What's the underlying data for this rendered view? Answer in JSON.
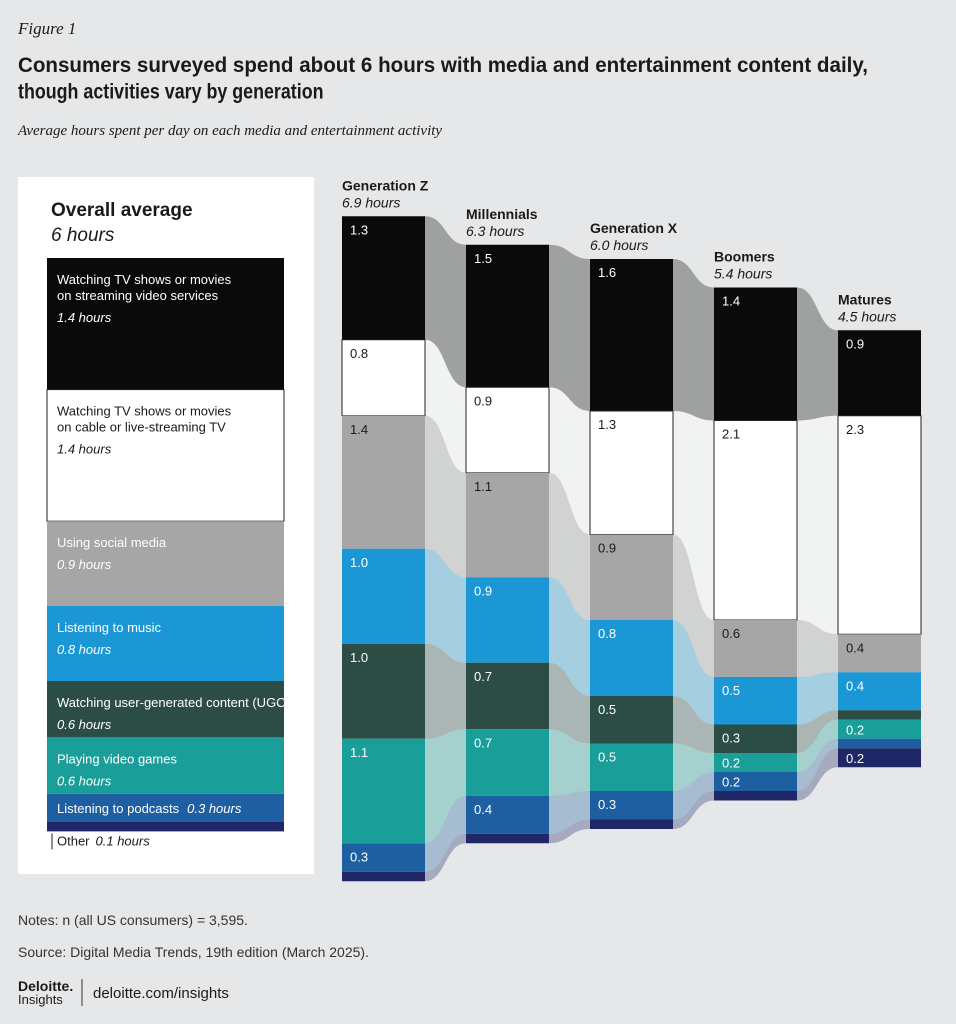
{
  "figure_label": "Figure 1",
  "chart_data": {
    "type": "stacked-flow-bar",
    "title": "Consumers surveyed spend about 6 hours with media and entertainment content daily,\nthough activities vary by generation",
    "subtitle": "Average hours spent per day on each media and entertainment activity",
    "overall": {
      "title": "Overall average",
      "value": 6,
      "value_label": "6 hours",
      "values": [
        1.4,
        1.4,
        0.9,
        0.8,
        0.6,
        0.6,
        0.3,
        0.1
      ],
      "value_labels": [
        "1.4 hours",
        "1.4 hours",
        "0.9 hours",
        "0.8 hours",
        "0.6 hours",
        "0.6 hours",
        "0.3 hours",
        "0.1 hours"
      ]
    },
    "categories": [
      "Generation Z",
      "Millennials",
      "Generation X",
      "Boomers",
      "Matures"
    ],
    "totals": [
      6.9,
      6.3,
      6.0,
      5.4,
      4.5
    ],
    "total_labels": [
      "6.9 hours",
      "6.3 hours",
      "6.0 hours",
      "5.4 hours",
      "4.5 hours"
    ],
    "series": [
      {
        "name": "Watching TV shows or movies\non streaming video services",
        "color": "#0a0a0a",
        "values": [
          1.3,
          1.5,
          1.6,
          1.4,
          0.9
        ],
        "value_labels": [
          "1.3",
          "1.5",
          "1.6",
          "1.4",
          "0.9"
        ]
      },
      {
        "name": "Watching TV shows or movies\non cable or live-streaming TV",
        "color": "#ffffff",
        "values": [
          0.8,
          0.9,
          1.3,
          2.1,
          2.3
        ],
        "value_labels": [
          "0.8",
          "0.9",
          "1.3",
          "2.1",
          "2.3"
        ]
      },
      {
        "name": "Using social media",
        "color": "#a6a6a6",
        "values": [
          1.4,
          1.1,
          0.9,
          0.6,
          0.4
        ],
        "value_labels": [
          "1.4",
          "1.1",
          "0.9",
          "0.6",
          "0.4"
        ]
      },
      {
        "name": "Listening to music",
        "color": "#1b97d5",
        "values": [
          1.0,
          0.9,
          0.8,
          0.5,
          0.4
        ],
        "value_labels": [
          "1.0",
          "0.9",
          "0.8",
          "0.5",
          "0.4"
        ]
      },
      {
        "name": "Watching user-generated content (UGC)",
        "color": "#2b4d45",
        "values": [
          1.0,
          0.7,
          0.5,
          0.3,
          0.1
        ],
        "value_labels": [
          "1.0",
          "0.7",
          "0.5",
          "0.3",
          null
        ]
      },
      {
        "name": "Playing video games",
        "color": "#1a9e99",
        "values": [
          1.1,
          0.7,
          0.5,
          0.2,
          0.2
        ],
        "value_labels": [
          "1.1",
          "0.7",
          "0.5",
          "0.2",
          "0.2"
        ]
      },
      {
        "name": "Listening to podcasts",
        "color": "#1e5fa1",
        "values": [
          0.3,
          0.4,
          0.3,
          0.2,
          0.1
        ],
        "value_labels": [
          "0.3",
          "0.4",
          "0.3",
          "0.2",
          null
        ]
      },
      {
        "name": "Other",
        "color": "#1f2767",
        "values": [
          0.1,
          0.1,
          0.1,
          0.1,
          0.2
        ],
        "value_labels": [
          null,
          null,
          null,
          null,
          "0.2"
        ]
      }
    ]
  },
  "notes": "Notes: n (all US consumers) = 3,595.",
  "source": "Source: Digital Media Trends, 19th edition (March 2025).",
  "footer": {
    "brand": "Deloitte.",
    "sub": "Insights",
    "url": "deloitte.com/insights"
  }
}
